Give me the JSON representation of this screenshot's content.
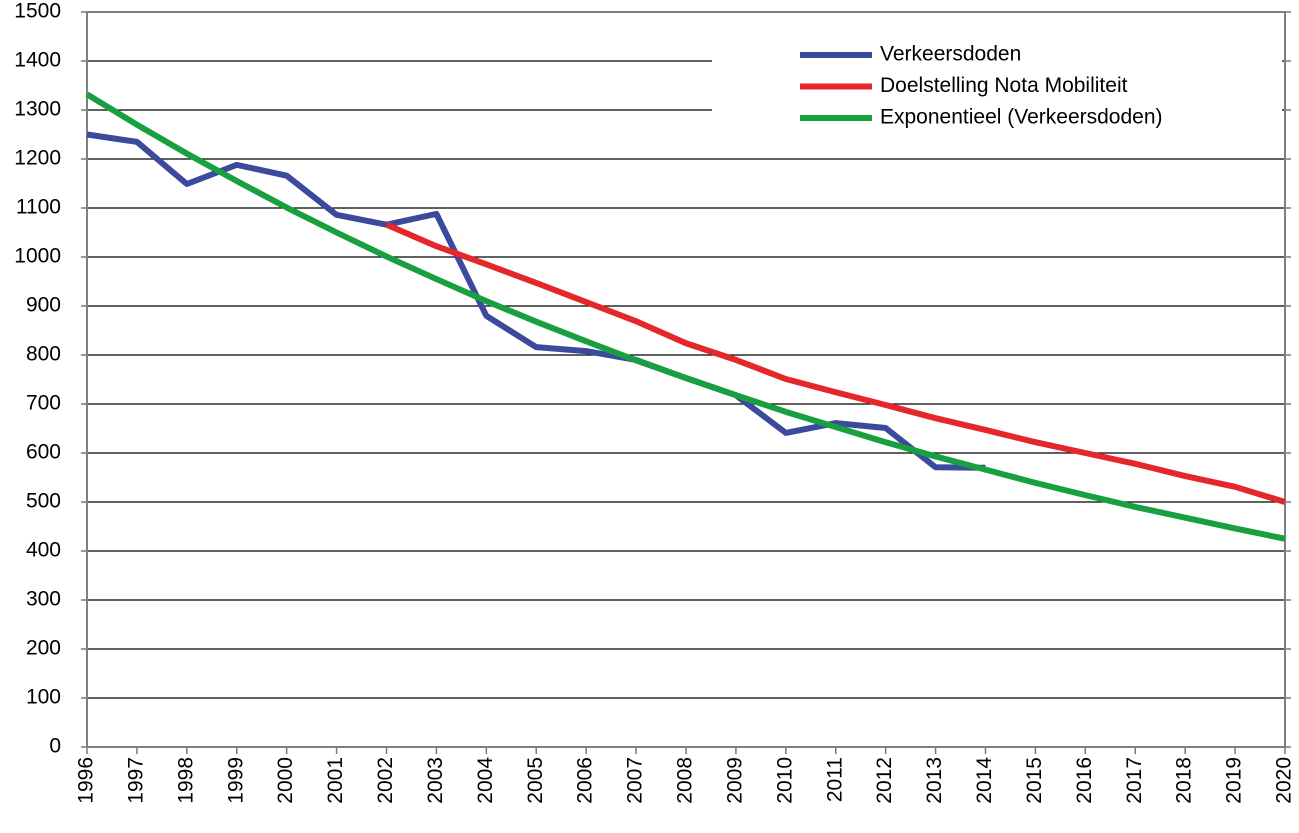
{
  "chart_data": {
    "type": "line",
    "categories": [
      "1996",
      "1997",
      "1998",
      "1999",
      "2000",
      "2001",
      "2002",
      "2003",
      "2004",
      "2005",
      "2006",
      "2007",
      "2008",
      "2009",
      "2010",
      "2011",
      "2012",
      "2013",
      "2014",
      "2015",
      "2016",
      "2017",
      "2018",
      "2019",
      "2020"
    ],
    "series": [
      {
        "name": "Verkeersdoden",
        "color": "#3b4a9c",
        "values": [
          1250,
          1235,
          1149,
          1188,
          1166,
          1086,
          1066,
          1088,
          880,
          816,
          808,
          790,
          753,
          718,
          641,
          661,
          651,
          571,
          570,
          null,
          null,
          null,
          null,
          null,
          null
        ]
      },
      {
        "name": "Doelstelling Nota Mobiliteit",
        "color": "#e5262a",
        "values": [
          null,
          null,
          null,
          null,
          null,
          null,
          1066,
          1022,
          985,
          947,
          908,
          869,
          824,
          790,
          751,
          724,
          698,
          671,
          647,
          622,
          600,
          578,
          553,
          531,
          500
        ]
      },
      {
        "name": "Exponentieel (Verkeersdoden)",
        "color": "#18a040",
        "values": [
          1332,
          1270,
          1211,
          1155,
          1101,
          1050,
          1001,
          955,
          910,
          868,
          828,
          789,
          753,
          718,
          684,
          653,
          622,
          593,
          566,
          539,
          514,
          490,
          468,
          446,
          425
        ]
      }
    ],
    "ylim": [
      0,
      1500
    ],
    "yticks": [
      0,
      100,
      200,
      300,
      400,
      500,
      600,
      700,
      800,
      900,
      1000,
      1100,
      1200,
      1300,
      1400,
      1500
    ],
    "grid": true
  }
}
